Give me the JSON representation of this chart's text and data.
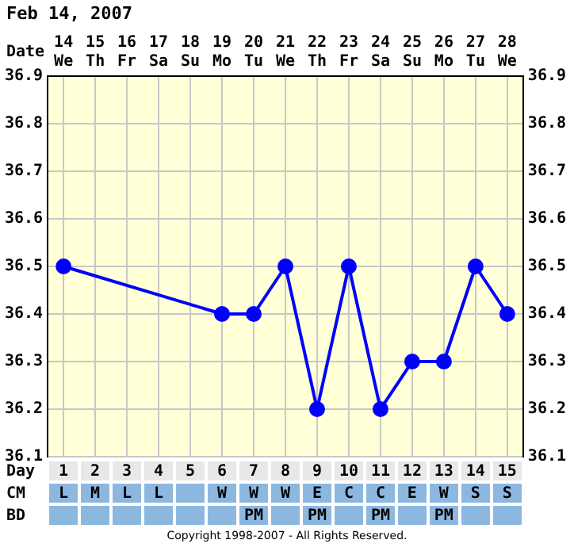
{
  "chart_data": {
    "type": "line",
    "title": "Feb 14, 2007",
    "xlabel": "Date",
    "categories": [
      "14 We",
      "15 Th",
      "16 Fr",
      "17 Sa",
      "18 Su",
      "19 Mo",
      "20 Tu",
      "21 We",
      "22 Th",
      "23 Fr",
      "24 Sa",
      "25 Su",
      "26 Mo",
      "27 Tu",
      "28 We"
    ],
    "series": [
      {
        "color": "#0000ff",
        "values": [
          36.5,
          null,
          null,
          null,
          null,
          36.4,
          36.4,
          36.5,
          36.2,
          36.5,
          36.2,
          36.3,
          36.3,
          36.5,
          36.4
        ]
      }
    ],
    "ylim": [
      36.1,
      36.9
    ],
    "yticks": [
      36.1,
      36.2,
      36.3,
      36.4,
      36.5,
      36.6,
      36.7,
      36.8,
      36.9
    ],
    "y2lim": [
      36.1,
      36.9
    ],
    "y2ticks": [
      36.1,
      36.2,
      36.3,
      36.4,
      36.5,
      36.6,
      36.7,
      36.8,
      36.9
    ],
    "grid": true,
    "marker": "circle",
    "line_style": "solid",
    "annotations": [
      "Day",
      "1 2 3 4 5 6 7 8 9 10 11 12 13 14 15",
      "CM",
      "L M L L  W W W E C C E W S S",
      "BD",
      "      PM  PM  PM  PM  ",
      "Copyright 1998-2007 - All Rights Reserved."
    ]
  }
}
